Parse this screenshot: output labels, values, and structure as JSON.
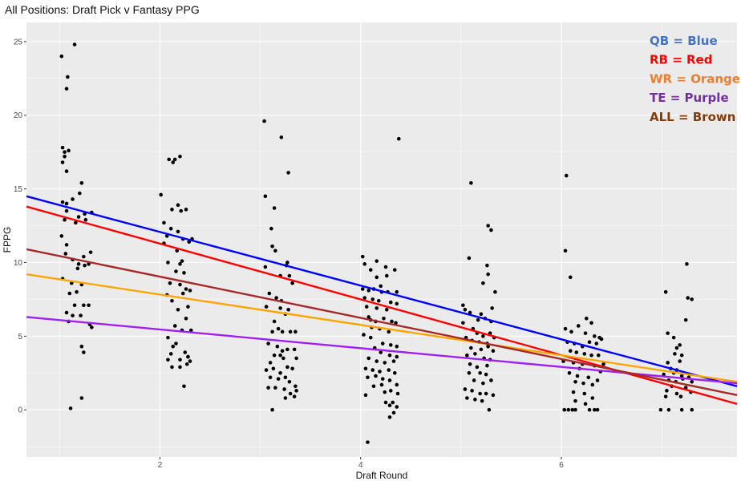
{
  "chart_data": {
    "type": "scatter",
    "title": "All Positions: Draft Pick v Fantasy PPG",
    "xlabel": "Draft Round",
    "ylabel": "FPPG",
    "xlim": [
      0.67,
      7.75
    ],
    "ylim": [
      -3.2,
      26.3
    ],
    "x_ticks": [
      2,
      4,
      6
    ],
    "y_ticks": [
      0,
      5,
      10,
      15,
      20,
      25
    ],
    "grid": true,
    "legend": {
      "placement": "top-right",
      "entries": [
        {
          "label": "QB = Blue",
          "color": "#4472C4"
        },
        {
          "label": "RB = Red",
          "color": "#FF0000"
        },
        {
          "label": "WR = Orange",
          "color": "#ED7D31"
        },
        {
          "label": "TE = Purple",
          "color": "#7030A0"
        },
        {
          "label": "ALL = Brown",
          "color": "#843C0C"
        }
      ]
    },
    "series": [
      {
        "name": "QB",
        "color": "#0000ff",
        "line": [
          [
            0.67,
            14.5
          ],
          [
            7.75,
            1.6
          ]
        ]
      },
      {
        "name": "RB",
        "color": "#ff0000",
        "line": [
          [
            0.67,
            13.8
          ],
          [
            7.75,
            0.4
          ]
        ]
      },
      {
        "name": "WR",
        "color": "#ffa500",
        "line": [
          [
            0.67,
            9.2
          ],
          [
            7.75,
            1.9
          ]
        ]
      },
      {
        "name": "TE",
        "color": "#a020f0",
        "line": [
          [
            0.67,
            6.3
          ],
          [
            7.75,
            1.8
          ]
        ]
      },
      {
        "name": "ALL",
        "color": "#a52a2a",
        "line": [
          [
            0.67,
            10.9
          ],
          [
            7.75,
            1.0
          ]
        ]
      }
    ],
    "points": [
      [
        1.03,
        17.8
      ],
      [
        1.05,
        17.5
      ],
      [
        1.05,
        17.2
      ],
      [
        1.09,
        17.6
      ],
      [
        1.03,
        16.8
      ],
      [
        1.07,
        16.2
      ],
      [
        1.02,
        24.0
      ],
      [
        1.08,
        22.6
      ],
      [
        1.07,
        21.8
      ],
      [
        1.15,
        24.8
      ],
      [
        1.03,
        14.1
      ],
      [
        1.07,
        14.0
      ],
      [
        1.13,
        14.3
      ],
      [
        1.05,
        12.9
      ],
      [
        1.02,
        11.8
      ],
      [
        1.19,
        13.1
      ],
      [
        1.26,
        12.9
      ],
      [
        1.22,
        15.4
      ],
      [
        1.2,
        14.7
      ],
      [
        1.07,
        13.5
      ],
      [
        1.25,
        13.3
      ],
      [
        1.32,
        13.4
      ],
      [
        1.06,
        10.6
      ],
      [
        1.13,
        10.2
      ],
      [
        1.18,
        9.6
      ],
      [
        1.25,
        9.8
      ],
      [
        1.24,
        10.4
      ],
      [
        1.31,
        10.7
      ],
      [
        1.29,
        9.9
      ],
      [
        1.19,
        9.9
      ],
      [
        1.03,
        8.9
      ],
      [
        1.12,
        8.6
      ],
      [
        1.17,
        8.0
      ],
      [
        1.22,
        8.5
      ],
      [
        1.1,
        7.9
      ],
      [
        1.15,
        7.1
      ],
      [
        1.24,
        7.1
      ],
      [
        1.29,
        7.1
      ],
      [
        1.07,
        6.6
      ],
      [
        1.13,
        6.4
      ],
      [
        1.09,
        6.0
      ],
      [
        1.21,
        6.4
      ],
      [
        1.3,
        5.8
      ],
      [
        1.32,
        5.6
      ],
      [
        1.22,
        4.3
      ],
      [
        1.24,
        3.9
      ],
      [
        1.11,
        0.1
      ],
      [
        1.22,
        0.8
      ],
      [
        1.07,
        11.2
      ],
      [
        1.16,
        12.7
      ],
      [
        2.09,
        17.0
      ],
      [
        2.13,
        16.8
      ],
      [
        2.15,
        17.0
      ],
      [
        2.2,
        17.2
      ],
      [
        2.01,
        14.6
      ],
      [
        2.12,
        13.6
      ],
      [
        2.18,
        13.9
      ],
      [
        2.21,
        13.5
      ],
      [
        2.26,
        13.6
      ],
      [
        2.04,
        12.7
      ],
      [
        2.11,
        12.3
      ],
      [
        2.18,
        12.1
      ],
      [
        2.07,
        11.8
      ],
      [
        2.23,
        11.6
      ],
      [
        2.29,
        11.4
      ],
      [
        2.32,
        11.6
      ],
      [
        2.04,
        11.3
      ],
      [
        2.17,
        10.8
      ],
      [
        2.22,
        10.1
      ],
      [
        2.08,
        10.0
      ],
      [
        2.2,
        9.9
      ],
      [
        2.16,
        9.4
      ],
      [
        2.24,
        9.3
      ],
      [
        2.1,
        8.6
      ],
      [
        2.2,
        8.5
      ],
      [
        2.26,
        8.2
      ],
      [
        2.3,
        8.1
      ],
      [
        2.07,
        7.8
      ],
      [
        2.12,
        7.4
      ],
      [
        2.23,
        7.9
      ],
      [
        2.28,
        7.0
      ],
      [
        2.18,
        6.8
      ],
      [
        2.26,
        6.2
      ],
      [
        2.15,
        5.7
      ],
      [
        2.22,
        5.4
      ],
      [
        2.31,
        5.4
      ],
      [
        2.08,
        4.9
      ],
      [
        2.13,
        4.3
      ],
      [
        2.11,
        3.8
      ],
      [
        2.2,
        3.4
      ],
      [
        2.25,
        3.9
      ],
      [
        2.28,
        3.6
      ],
      [
        2.3,
        3.3
      ],
      [
        2.08,
        3.4
      ],
      [
        2.12,
        2.9
      ],
      [
        2.2,
        2.9
      ],
      [
        2.27,
        3.1
      ],
      [
        2.24,
        1.6
      ],
      [
        2.28,
        3.6
      ],
      [
        2.16,
        4.5
      ],
      [
        3.04,
        19.6
      ],
      [
        3.21,
        18.5
      ],
      [
        3.28,
        16.1
      ],
      [
        3.05,
        14.5
      ],
      [
        3.14,
        13.7
      ],
      [
        3.11,
        12.3
      ],
      [
        3.12,
        11.1
      ],
      [
        3.15,
        10.8
      ],
      [
        3.27,
        10.0
      ],
      [
        3.26,
        9.8
      ],
      [
        3.05,
        9.7
      ],
      [
        3.2,
        9.1
      ],
      [
        3.29,
        9.1
      ],
      [
        3.32,
        8.6
      ],
      [
        3.09,
        7.9
      ],
      [
        3.16,
        7.6
      ],
      [
        3.21,
        7.4
      ],
      [
        3.06,
        7.0
      ],
      [
        3.2,
        6.9
      ],
      [
        3.28,
        6.8
      ],
      [
        3.25,
        6.5
      ],
      [
        3.18,
        5.5
      ],
      [
        3.22,
        5.3
      ],
      [
        3.3,
        5.3
      ],
      [
        3.35,
        5.3
      ],
      [
        3.12,
        5.3
      ],
      [
        3.08,
        4.5
      ],
      [
        3.17,
        4.3
      ],
      [
        3.22,
        4.0
      ],
      [
        3.14,
        3.7
      ],
      [
        3.2,
        3.7
      ],
      [
        3.27,
        4.1
      ],
      [
        3.34,
        4.1
      ],
      [
        3.36,
        3.5
      ],
      [
        3.1,
        3.2
      ],
      [
        3.06,
        2.7
      ],
      [
        3.13,
        2.8
      ],
      [
        3.2,
        2.5
      ],
      [
        3.27,
        2.9
      ],
      [
        3.32,
        2.8
      ],
      [
        3.1,
        2.2
      ],
      [
        3.18,
        2.1
      ],
      [
        3.25,
        2.2
      ],
      [
        3.29,
        1.9
      ],
      [
        3.35,
        1.6
      ],
      [
        3.08,
        1.5
      ],
      [
        3.15,
        1.5
      ],
      [
        3.24,
        1.4
      ],
      [
        3.3,
        1.1
      ],
      [
        3.34,
        0.9
      ],
      [
        3.12,
        0.0
      ],
      [
        3.25,
        0.8
      ],
      [
        3.36,
        1.3
      ],
      [
        3.23,
        3.5
      ],
      [
        3.14,
        6.0
      ],
      [
        4.02,
        10.4
      ],
      [
        4.16,
        10.1
      ],
      [
        4.25,
        9.7
      ],
      [
        4.04,
        9.9
      ],
      [
        4.1,
        9.5
      ],
      [
        4.16,
        9.0
      ],
      [
        4.26,
        9.1
      ],
      [
        4.34,
        9.5
      ],
      [
        4.02,
        8.2
      ],
      [
        4.08,
        8.1
      ],
      [
        4.13,
        8.2
      ],
      [
        4.21,
        8.0
      ],
      [
        4.27,
        8.0
      ],
      [
        4.36,
        8.0
      ],
      [
        4.04,
        7.6
      ],
      [
        4.12,
        7.5
      ],
      [
        4.18,
        7.4
      ],
      [
        4.3,
        7.3
      ],
      [
        4.36,
        7.2
      ],
      [
        4.06,
        7.0
      ],
      [
        4.16,
        6.9
      ],
      [
        4.26,
        6.8
      ],
      [
        4.38,
        18.4
      ],
      [
        4.08,
        6.3
      ],
      [
        4.15,
        6.0
      ],
      [
        4.23,
        6.2
      ],
      [
        4.31,
        6.0
      ],
      [
        4.35,
        5.9
      ],
      [
        4.11,
        5.6
      ],
      [
        4.19,
        5.5
      ],
      [
        4.28,
        5.3
      ],
      [
        4.03,
        5.1
      ],
      [
        4.1,
        4.9
      ],
      [
        4.22,
        4.5
      ],
      [
        4.3,
        4.4
      ],
      [
        4.36,
        4.3
      ],
      [
        4.14,
        4.2
      ],
      [
        4.2,
        3.9
      ],
      [
        4.29,
        3.7
      ],
      [
        4.36,
        3.6
      ],
      [
        4.08,
        3.5
      ],
      [
        4.16,
        3.3
      ],
      [
        4.24,
        3.2
      ],
      [
        4.33,
        3.3
      ],
      [
        4.05,
        2.8
      ],
      [
        4.12,
        2.7
      ],
      [
        4.19,
        2.6
      ],
      [
        4.28,
        2.7
      ],
      [
        4.34,
        2.5
      ],
      [
        4.07,
        2.2
      ],
      [
        4.15,
        2.3
      ],
      [
        4.22,
        2.1
      ],
      [
        4.29,
        2.0
      ],
      [
        4.36,
        1.7
      ],
      [
        4.13,
        1.6
      ],
      [
        4.21,
        1.7
      ],
      [
        4.05,
        1.0
      ],
      [
        4.24,
        1.2
      ],
      [
        4.3,
        1.3
      ],
      [
        4.37,
        1.1
      ],
      [
        4.25,
        0.5
      ],
      [
        4.32,
        0.5
      ],
      [
        4.29,
        0.3
      ],
      [
        4.36,
        0.2
      ],
      [
        4.33,
        -0.2
      ],
      [
        4.29,
        -0.5
      ],
      [
        4.07,
        -2.2
      ],
      [
        4.2,
        8.4
      ],
      [
        4.1,
        6.1
      ],
      [
        5.1,
        15.4
      ],
      [
        5.27,
        12.5
      ],
      [
        5.3,
        12.2
      ],
      [
        5.08,
        10.3
      ],
      [
        5.26,
        9.8
      ],
      [
        5.27,
        9.2
      ],
      [
        5.22,
        8.6
      ],
      [
        5.34,
        8.0
      ],
      [
        5.02,
        7.1
      ],
      [
        5.04,
        6.8
      ],
      [
        5.09,
        6.6
      ],
      [
        5.2,
        6.5
      ],
      [
        5.31,
        6.9
      ],
      [
        5.24,
        6.2
      ],
      [
        5.3,
        6.0
      ],
      [
        5.02,
        5.9
      ],
      [
        5.12,
        5.5
      ],
      [
        5.16,
        5.2
      ],
      [
        5.22,
        5.0
      ],
      [
        5.29,
        5.2
      ],
      [
        5.05,
        4.9
      ],
      [
        5.11,
        4.7
      ],
      [
        5.18,
        4.6
      ],
      [
        5.26,
        4.5
      ],
      [
        5.1,
        4.2
      ],
      [
        5.2,
        4.1
      ],
      [
        5.27,
        4.3
      ],
      [
        5.32,
        4.0
      ],
      [
        5.06,
        3.7
      ],
      [
        5.14,
        3.8
      ],
      [
        5.23,
        3.5
      ],
      [
        5.29,
        3.4
      ],
      [
        5.09,
        3.1
      ],
      [
        5.16,
        2.9
      ],
      [
        5.26,
        3.0
      ],
      [
        5.08,
        2.5
      ],
      [
        5.19,
        2.5
      ],
      [
        5.25,
        2.4
      ],
      [
        5.13,
        2.0
      ],
      [
        5.22,
        1.8
      ],
      [
        5.3,
        2.0
      ],
      [
        5.04,
        1.4
      ],
      [
        5.11,
        1.3
      ],
      [
        5.19,
        1.1
      ],
      [
        5.25,
        1.1
      ],
      [
        5.32,
        1.0
      ],
      [
        5.06,
        0.8
      ],
      [
        5.14,
        0.7
      ],
      [
        5.21,
        0.6
      ],
      [
        5.28,
        0.0
      ],
      [
        5.17,
        6.1
      ],
      [
        5.33,
        4.9
      ],
      [
        6.05,
        15.9
      ],
      [
        6.04,
        10.8
      ],
      [
        6.09,
        9.0
      ],
      [
        6.25,
        6.2
      ],
      [
        6.3,
        5.9
      ],
      [
        6.17,
        5.7
      ],
      [
        6.04,
        5.5
      ],
      [
        6.1,
        5.3
      ],
      [
        6.24,
        5.2
      ],
      [
        6.33,
        5.0
      ],
      [
        6.38,
        4.9
      ],
      [
        6.06,
        4.6
      ],
      [
        6.13,
        4.5
      ],
      [
        6.21,
        4.3
      ],
      [
        6.28,
        4.6
      ],
      [
        6.35,
        4.5
      ],
      [
        6.4,
        4.8
      ],
      [
        6.09,
        4.0
      ],
      [
        6.15,
        3.9
      ],
      [
        6.23,
        3.8
      ],
      [
        6.3,
        3.7
      ],
      [
        6.37,
        3.7
      ],
      [
        6.02,
        3.3
      ],
      [
        6.12,
        3.2
      ],
      [
        6.21,
        3.1
      ],
      [
        6.33,
        3.0
      ],
      [
        6.42,
        3.1
      ],
      [
        6.08,
        2.5
      ],
      [
        6.16,
        2.3
      ],
      [
        6.27,
        2.2
      ],
      [
        6.36,
        2.0
      ],
      [
        6.14,
        1.9
      ],
      [
        6.22,
        1.8
      ],
      [
        6.31,
        1.7
      ],
      [
        6.12,
        1.2
      ],
      [
        6.23,
        1.1
      ],
      [
        6.31,
        0.8
      ],
      [
        6.14,
        0.6
      ],
      [
        6.24,
        0.4
      ],
      [
        6.03,
        0.0
      ],
      [
        6.07,
        0.0
      ],
      [
        6.11,
        0.0
      ],
      [
        6.14,
        0.0
      ],
      [
        6.28,
        0.0
      ],
      [
        6.33,
        0.0
      ],
      [
        6.36,
        0.0
      ],
      [
        6.18,
        2.8
      ],
      [
        6.39,
        2.6
      ],
      [
        7.04,
        8.0
      ],
      [
        7.25,
        9.9
      ],
      [
        7.26,
        7.6
      ],
      [
        7.3,
        7.5
      ],
      [
        7.06,
        5.2
      ],
      [
        7.24,
        6.1
      ],
      [
        7.12,
        4.9
      ],
      [
        7.15,
        4.2
      ],
      [
        7.13,
        3.8
      ],
      [
        7.18,
        4.4
      ],
      [
        7.2,
        3.7
      ],
      [
        7.06,
        3.2
      ],
      [
        7.18,
        3.3
      ],
      [
        7.09,
        2.8
      ],
      [
        7.15,
        2.7
      ],
      [
        7.02,
        2.4
      ],
      [
        7.12,
        2.5
      ],
      [
        7.2,
        2.3
      ],
      [
        7.27,
        2.2
      ],
      [
        7.07,
        2.0
      ],
      [
        7.14,
        1.9
      ],
      [
        7.21,
        2.1
      ],
      [
        7.3,
        1.9
      ],
      [
        7.1,
        1.6
      ],
      [
        7.24,
        1.5
      ],
      [
        7.05,
        1.3
      ],
      [
        7.15,
        1.1
      ],
      [
        7.29,
        1.2
      ],
      [
        7.04,
        0.9
      ],
      [
        7.19,
        0.9
      ],
      [
        6.99,
        0.0
      ],
      [
        7.07,
        0.0
      ],
      [
        7.2,
        0.0
      ],
      [
        7.3,
        0.0
      ]
    ]
  }
}
